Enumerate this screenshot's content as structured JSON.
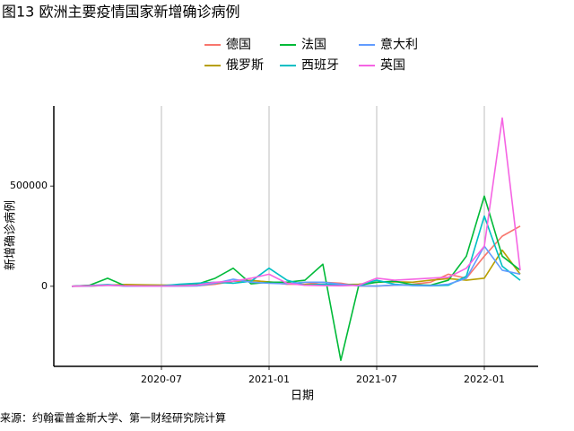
{
  "chart_data": {
    "type": "line",
    "title": "图13 欧洲主要疫情国家新增确诊病例",
    "x_label": "日期",
    "y_label": "新增确诊病例",
    "source": "来源：约翰霍普金斯大学、第一财经研究院计算",
    "x": [
      "2020-02",
      "2020-03",
      "2020-04",
      "2020-05",
      "2020-06",
      "2020-07",
      "2020-08",
      "2020-09",
      "2020-10",
      "2020-11",
      "2020-12",
      "2021-01",
      "2021-02",
      "2021-03",
      "2021-04",
      "2021-05",
      "2021-06",
      "2021-07",
      "2021-08",
      "2021-09",
      "2021-10",
      "2021-11",
      "2021-12",
      "2022-01",
      "2022-02",
      "2022-03"
    ],
    "xlim": [
      "2020-01",
      "2022-04"
    ],
    "xticks": [
      "2020-07",
      "2021-01",
      "2021-07",
      "2022-01"
    ],
    "ylim": [
      -400000,
      900000
    ],
    "yticks": [
      0,
      500000
    ],
    "xgrid": true,
    "series": [
      {
        "name": "德国",
        "color": "#F8766D",
        "values": [
          0,
          5000,
          5000,
          1000,
          500,
          500,
          1000,
          2000,
          10000,
          25000,
          30000,
          20000,
          10000,
          10000,
          20000,
          15000,
          1000,
          1000,
          5000,
          10000,
          20000,
          60000,
          40000,
          150000,
          250000,
          300000
        ]
      },
      {
        "name": "俄罗斯",
        "color": "#B79F00",
        "values": [
          0,
          500,
          5000,
          9000,
          7000,
          6000,
          5000,
          6000,
          15000,
          25000,
          28000,
          22000,
          15000,
          9000,
          9000,
          8000,
          10000,
          20000,
          22000,
          20000,
          30000,
          38000,
          30000,
          40000,
          180000,
          60000
        ]
      },
      {
        "name": "法国",
        "color": "#00BA38",
        "values": [
          0,
          5000,
          40000,
          1000,
          500,
          500,
          3000,
          10000,
          40000,
          90000,
          12000,
          20000,
          20000,
          30000,
          110000,
          -370000,
          5000,
          20000,
          25000,
          8000,
          5000,
          30000,
          150000,
          450000,
          150000,
          80000
        ]
      },
      {
        "name": "西班牙",
        "color": "#00BFC4",
        "values": [
          0,
          3000,
          8000,
          1000,
          500,
          2000,
          10000,
          15000,
          20000,
          15000,
          25000,
          90000,
          30000,
          5000,
          10000,
          8000,
          5000,
          30000,
          10000,
          3000,
          2000,
          5000,
          50000,
          350000,
          100000,
          30000
        ]
      },
      {
        "name": "意大利",
        "color": "#619CFF",
        "values": [
          0,
          1000,
          5000,
          1000,
          300,
          300,
          1000,
          2000,
          15000,
          35000,
          20000,
          15000,
          12000,
          20000,
          20000,
          10000,
          2000,
          1000,
          6000,
          5000,
          3000,
          10000,
          40000,
          200000,
          80000,
          60000
        ]
      },
      {
        "name": "英国",
        "color": "#F564E3",
        "values": [
          0,
          2000,
          5000,
          2000,
          1000,
          1000,
          2000,
          6000,
          20000,
          25000,
          40000,
          60000,
          15000,
          5000,
          3000,
          2000,
          5000,
          40000,
          30000,
          35000,
          40000,
          45000,
          90000,
          200000,
          840000,
          80000
        ]
      }
    ]
  }
}
